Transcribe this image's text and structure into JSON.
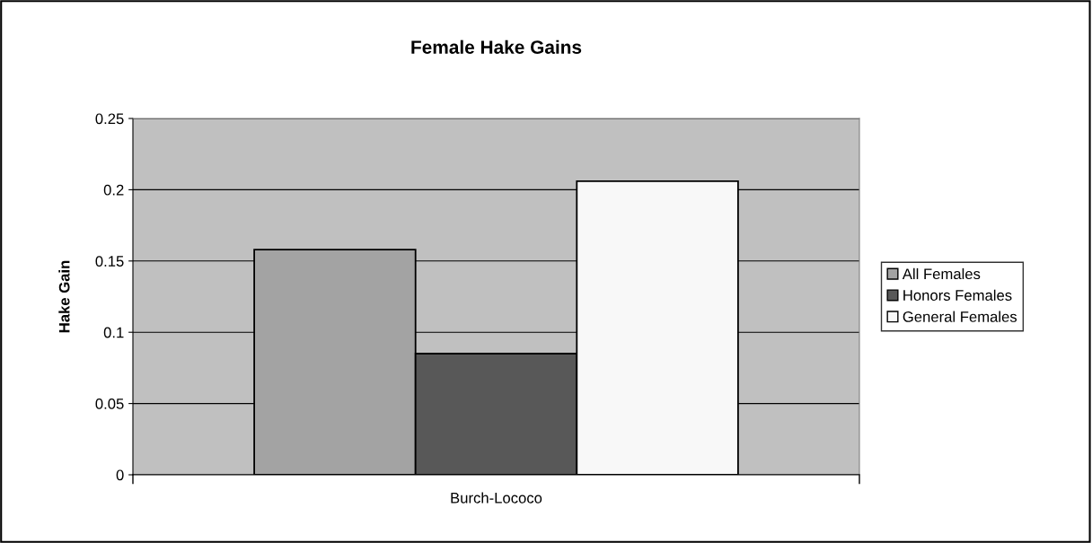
{
  "chart_data": {
    "type": "bar",
    "title": "Female Hake Gains",
    "ylabel": "Hake Gain",
    "categories": [
      "Burch-Lococo"
    ],
    "series": [
      {
        "name": "All Females",
        "color": "#a3a3a3",
        "values": [
          0.158
        ]
      },
      {
        "name": "Honors Females",
        "color": "#585858",
        "values": [
          0.085
        ]
      },
      {
        "name": "General Females",
        "color": "#f8f8f8",
        "values": [
          0.206
        ]
      }
    ],
    "ylim": [
      0,
      0.25
    ],
    "yticks": [
      0,
      0.05,
      0.1,
      0.15,
      0.2,
      0.25
    ],
    "grid": "y",
    "legend": "right"
  }
}
